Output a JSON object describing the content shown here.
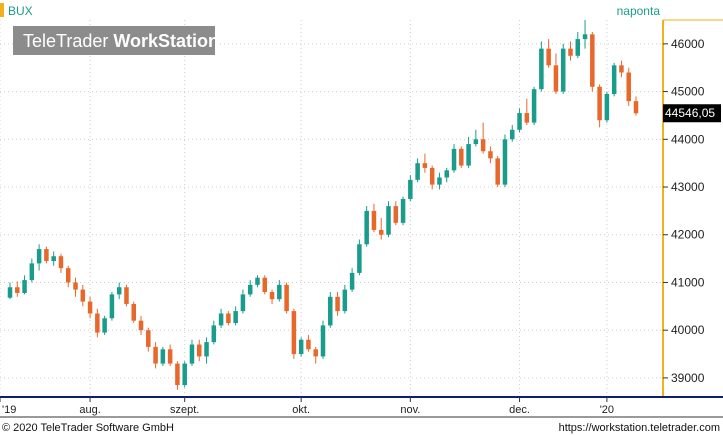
{
  "header": {
    "symbol": "BUX",
    "period": "naponta"
  },
  "watermark": {
    "brand": "TeleTrader",
    "product": "WorkStation"
  },
  "footer": {
    "copyright": "© 2020 TeleTrader Software GmbH",
    "url": "https://workstation.teletrader.com"
  },
  "colors": {
    "up": "#1a9c8c",
    "down": "#e8682c",
    "grid": "#cccccc",
    "axis_accent": "#f2b01e",
    "axis_line": "#0d1f6b",
    "last_label_bg": "#000000"
  },
  "chart_data": {
    "type": "candlestick",
    "title": "",
    "ylim": [
      38600,
      46500
    ],
    "yticks": [
      39000,
      40000,
      41000,
      42000,
      43000,
      44000,
      45000,
      46000
    ],
    "ytick_labels": [
      "39000",
      "40000",
      "41000",
      "42000",
      "43000",
      "44000",
      "45000",
      "46000"
    ],
    "xtick_labels": [
      "'19",
      "aug.",
      "szept.",
      "okt.",
      "nov.",
      "dec.",
      "'20"
    ],
    "last_value": 44546.05,
    "last_value_label": "44546,05",
    "grid": true,
    "ohlc": [
      [
        40680,
        41000,
        40650,
        40900
      ],
      [
        40900,
        41020,
        40700,
        40780
      ],
      [
        40780,
        41150,
        40750,
        41050
      ],
      [
        41050,
        41500,
        41000,
        41400
      ],
      [
        41400,
        41800,
        41250,
        41700
      ],
      [
        41700,
        41750,
        41400,
        41450
      ],
      [
        41450,
        41650,
        41350,
        41550
      ],
      [
        41550,
        41600,
        41200,
        41300
      ],
      [
        41300,
        41350,
        40900,
        41000
      ],
      [
        41000,
        41100,
        40700,
        40850
      ],
      [
        40850,
        40950,
        40500,
        40600
      ],
      [
        40600,
        40700,
        40250,
        40350
      ],
      [
        40350,
        40450,
        39850,
        39950
      ],
      [
        39950,
        40300,
        39900,
        40250
      ],
      [
        40250,
        40800,
        40200,
        40750
      ],
      [
        40750,
        41000,
        40650,
        40900
      ],
      [
        40900,
        40950,
        40500,
        40550
      ],
      [
        40550,
        40600,
        40150,
        40200
      ],
      [
        40200,
        40300,
        39900,
        40000
      ],
      [
        40000,
        40050,
        39550,
        39650
      ],
      [
        39650,
        39750,
        39200,
        39300
      ],
      [
        39300,
        39650,
        39250,
        39600
      ],
      [
        39600,
        39700,
        39250,
        39300
      ],
      [
        39300,
        39350,
        38750,
        38850
      ],
      [
        38850,
        39350,
        38800,
        39300
      ],
      [
        39300,
        39800,
        39250,
        39700
      ],
      [
        39700,
        39800,
        39350,
        39450
      ],
      [
        39450,
        39850,
        39300,
        39750
      ],
      [
        39750,
        40200,
        39700,
        40100
      ],
      [
        40100,
        40450,
        40050,
        40350
      ],
      [
        40350,
        40400,
        40100,
        40150
      ],
      [
        40150,
        40500,
        40100,
        40400
      ],
      [
        40400,
        40850,
        40350,
        40750
      ],
      [
        40750,
        41050,
        40700,
        40950
      ],
      [
        40950,
        41150,
        40900,
        41100
      ],
      [
        41100,
        41150,
        40750,
        40800
      ],
      [
        40800,
        40850,
        40550,
        40650
      ],
      [
        40650,
        41050,
        40600,
        40950
      ],
      [
        40950,
        41000,
        40350,
        40400
      ],
      [
        40400,
        40450,
        39400,
        39500
      ],
      [
        39500,
        39850,
        39450,
        39800
      ],
      [
        39800,
        39900,
        39550,
        39600
      ],
      [
        39600,
        39650,
        39300,
        39450
      ],
      [
        39450,
        40200,
        39400,
        40100
      ],
      [
        40100,
        40800,
        40050,
        40700
      ],
      [
        40700,
        40800,
        40300,
        40400
      ],
      [
        40400,
        40950,
        40350,
        40850
      ],
      [
        40850,
        41300,
        40800,
        41200
      ],
      [
        41200,
        41900,
        41150,
        41800
      ],
      [
        41800,
        42600,
        41750,
        42500
      ],
      [
        42500,
        42650,
        42050,
        42100
      ],
      [
        42100,
        42350,
        41900,
        42000
      ],
      [
        42000,
        42700,
        41950,
        42600
      ],
      [
        42600,
        42700,
        42200,
        42250
      ],
      [
        42250,
        42800,
        42200,
        42750
      ],
      [
        42750,
        43250,
        42700,
        43150
      ],
      [
        43150,
        43600,
        43100,
        43500
      ],
      [
        43500,
        43700,
        43300,
        43400
      ],
      [
        43400,
        43450,
        42950,
        43050
      ],
      [
        43050,
        43300,
        42950,
        43200
      ],
      [
        43200,
        43400,
        43100,
        43350
      ],
      [
        43350,
        43900,
        43300,
        43800
      ],
      [
        43800,
        43850,
        43400,
        43450
      ],
      [
        43450,
        44050,
        43400,
        43900
      ],
      [
        43900,
        44200,
        43850,
        44000
      ],
      [
        44000,
        44350,
        43700,
        43750
      ],
      [
        43750,
        43850,
        43500,
        43600
      ],
      [
        43600,
        43650,
        43000,
        43050
      ],
      [
        43050,
        44100,
        43000,
        44000
      ],
      [
        44000,
        44300,
        43950,
        44200
      ],
      [
        44200,
        44650,
        44150,
        44550
      ],
      [
        44550,
        44850,
        44300,
        44350
      ],
      [
        44350,
        45100,
        44300,
        45050
      ],
      [
        45050,
        46050,
        45000,
        45900
      ],
      [
        45900,
        46100,
        45500,
        45550
      ],
      [
        45550,
        45800,
        44950,
        45000
      ],
      [
        45000,
        46000,
        44950,
        45900
      ],
      [
        45900,
        46050,
        45650,
        45750
      ],
      [
        45750,
        46250,
        45700,
        46100
      ],
      [
        46100,
        46500,
        45900,
        46200
      ],
      [
        46200,
        46250,
        45000,
        45100
      ],
      [
        45100,
        45150,
        44250,
        44400
      ],
      [
        44400,
        45000,
        44350,
        44950
      ],
      [
        44950,
        45600,
        44900,
        45550
      ],
      [
        45550,
        45650,
        45300,
        45400
      ],
      [
        45400,
        45500,
        44700,
        44800
      ],
      [
        44800,
        44900,
        44500,
        44546.05
      ]
    ]
  }
}
